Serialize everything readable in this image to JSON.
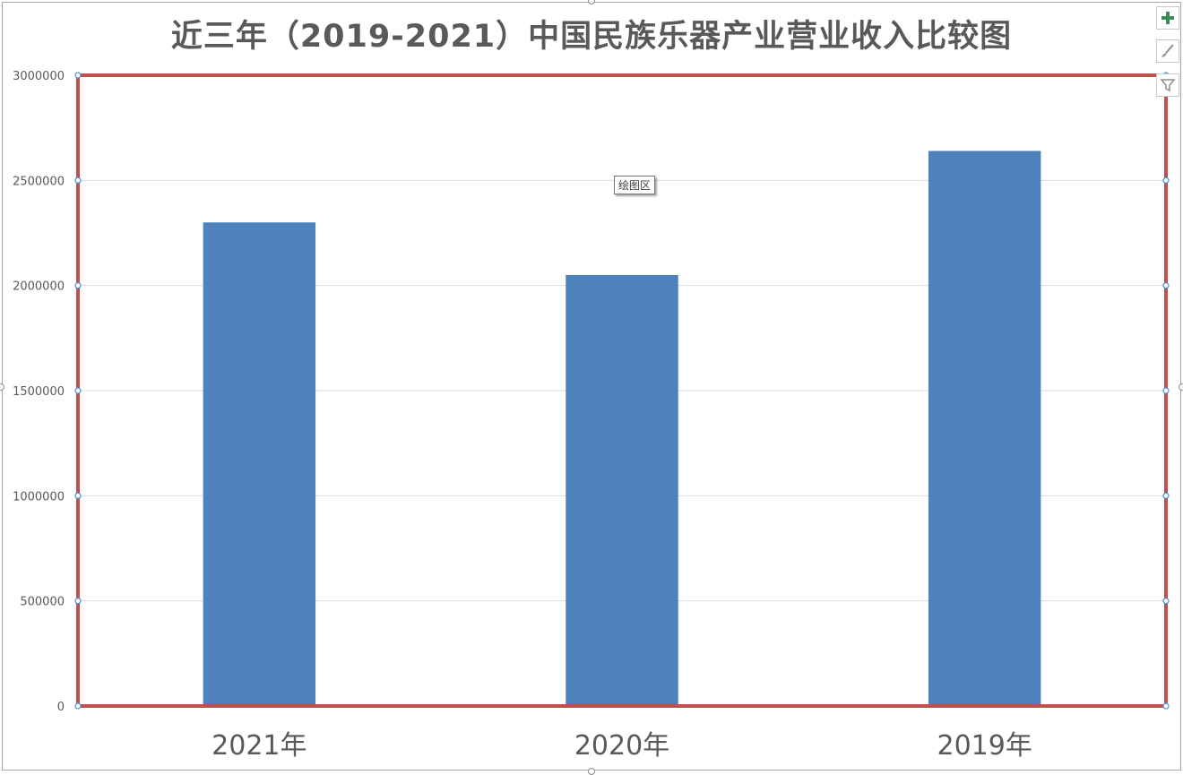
{
  "chart_data": {
    "type": "bar",
    "title": "近三年（2019-2021）中国民族乐器产业营业收入比较图",
    "categories": [
      "2021年",
      "2020年",
      "2019年"
    ],
    "values": [
      2300000,
      2050000,
      2640000
    ],
    "yticks": [
      "0",
      "500000",
      "1000000",
      "1500000",
      "2000000",
      "2500000",
      "3000000"
    ],
    "ylim": [
      0,
      3000000
    ],
    "grid": true,
    "legend": "none",
    "colors": {
      "bar": "#4F81BD",
      "plot_border": "#C0504D",
      "gridline": "#D9D9D9",
      "axis_text": "#595959"
    }
  },
  "tooltip": {
    "label": "绘图区"
  },
  "chart_buttons": [
    {
      "name": "chart-elements-button",
      "icon": "plus-icon"
    },
    {
      "name": "chart-styles-button",
      "icon": "brush-icon"
    },
    {
      "name": "chart-filters-button",
      "icon": "filter-icon"
    }
  ]
}
